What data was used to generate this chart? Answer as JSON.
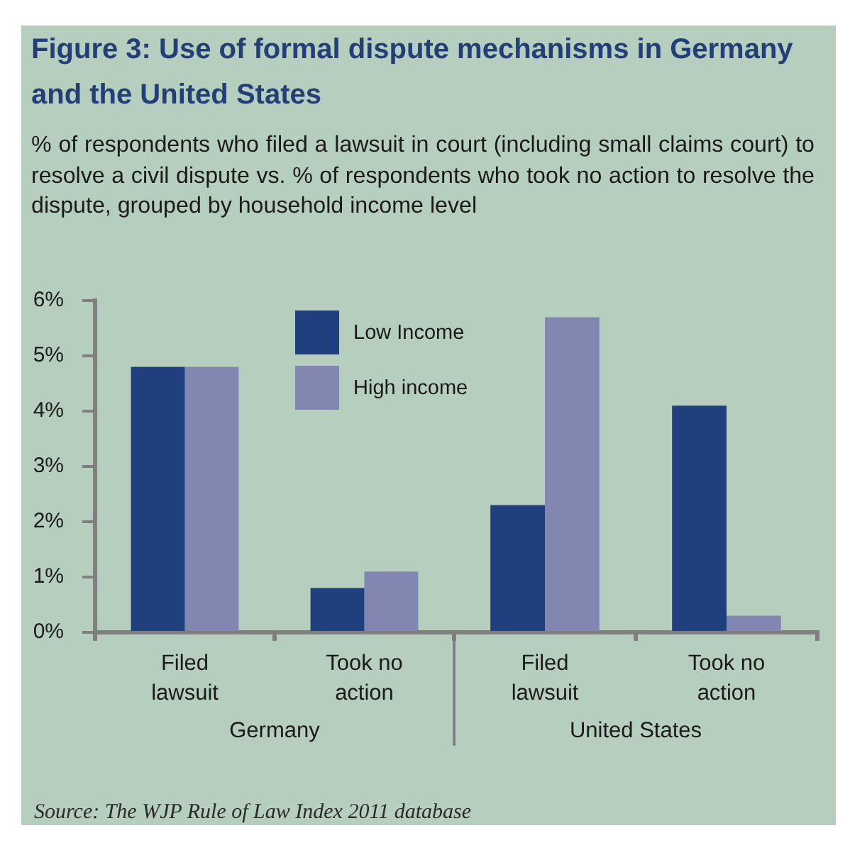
{
  "chart_data": [
    {
      "type": "bar",
      "title": "Figure 3: Use of formal dispute mechanisms in Germany and the United States",
      "subtitle": "% of respondents who filed a lawsuit in court (including small claims court) to resolve a civil dispute vs. % of respondents who took no action to resolve the dispute, grouped by household income level",
      "xlabel": "Germany",
      "categories": [
        "Filed lawsuit",
        "Took no action"
      ],
      "series": [
        {
          "name": "Low Income",
          "color": "#203f7e",
          "values": [
            4.8,
            0.8
          ]
        },
        {
          "name": "High income",
          "color": "#8287b1",
          "values": [
            4.8,
            1.1
          ]
        }
      ],
      "ylim": [
        0,
        6
      ],
      "yticks": [
        {
          "value": 0,
          "label": "0%"
        },
        {
          "value": 1,
          "label": "1%"
        },
        {
          "value": 2,
          "label": "2%"
        },
        {
          "value": 3,
          "label": "3%"
        },
        {
          "value": 4,
          "label": "4%"
        },
        {
          "value": 5,
          "label": "5%"
        },
        {
          "value": 6,
          "label": "6%"
        }
      ],
      "legend": "top right",
      "annotations": [
        "Source: The WJP Rule of Law Index 2011 database"
      ]
    },
    {
      "type": "bar",
      "xlabel": "United States",
      "categories": [
        "Filed lawsuit",
        "Took no action"
      ],
      "series": [
        {
          "color": "#203f7e",
          "values": [
            2.3,
            4.1
          ]
        },
        {
          "color": "#8287b1",
          "values": [
            5.7,
            0.3
          ]
        }
      ],
      "ylim": [
        0,
        6
      ],
      "tick_labels": "x"
    }
  ]
}
